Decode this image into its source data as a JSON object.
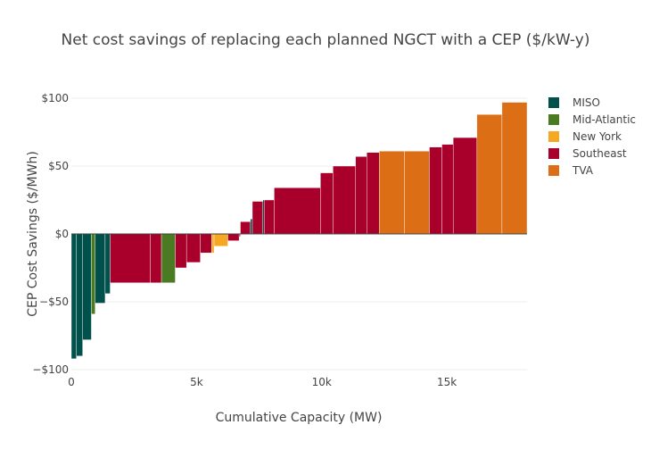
{
  "chart_data": {
    "type": "bar",
    "title": "Net cost savings of replacing each planned NGCT with a CEP ($/kW-y)",
    "xlabel": "Cumulative Capacity (MW)",
    "ylabel": "CEP Cost Savings ($/MWh)",
    "xlim": [
      0,
      18200
    ],
    "ylim": [
      -100,
      100
    ],
    "grid": true,
    "legend_position": "top-right",
    "x_ticks": [
      {
        "value": 0,
        "label": "0"
      },
      {
        "value": 5000,
        "label": "5k"
      },
      {
        "value": 10000,
        "label": "10k"
      },
      {
        "value": 15000,
        "label": "15k"
      }
    ],
    "y_ticks": [
      {
        "value": 100,
        "label": "$100"
      },
      {
        "value": 50,
        "label": "$50"
      },
      {
        "value": 0,
        "label": "$0"
      },
      {
        "value": -50,
        "label": "−$50"
      },
      {
        "value": -100,
        "label": "−$100"
      }
    ],
    "series": [
      {
        "name": "MISO",
        "color": "#00514b"
      },
      {
        "name": "Mid-Atlantic",
        "color": "#4a7b22"
      },
      {
        "name": "New York",
        "color": "#f7a823"
      },
      {
        "name": "Southeast",
        "color": "#a8002b"
      },
      {
        "name": "TVA",
        "color": "#dc6e15"
      }
    ],
    "bars": [
      {
        "series": "MISO",
        "x0": 0,
        "x1": 200,
        "y": -92
      },
      {
        "series": "MISO",
        "x0": 200,
        "x1": 450,
        "y": -90
      },
      {
        "series": "MISO",
        "x0": 450,
        "x1": 800,
        "y": -78
      },
      {
        "series": "Mid-Atlantic",
        "x0": 800,
        "x1": 950,
        "y": -59
      },
      {
        "series": "MISO",
        "x0": 950,
        "x1": 1350,
        "y": -51
      },
      {
        "series": "MISO",
        "x0": 1350,
        "x1": 1550,
        "y": -44
      },
      {
        "series": "Southeast",
        "x0": 1550,
        "x1": 3150,
        "y": -36
      },
      {
        "series": "Southeast",
        "x0": 3150,
        "x1": 3600,
        "y": -36
      },
      {
        "series": "Mid-Atlantic",
        "x0": 3600,
        "x1": 4150,
        "y": -36
      },
      {
        "series": "Southeast",
        "x0": 4150,
        "x1": 4600,
        "y": -25
      },
      {
        "series": "Southeast",
        "x0": 4600,
        "x1": 5150,
        "y": -21
      },
      {
        "series": "Southeast",
        "x0": 5150,
        "x1": 5600,
        "y": -14
      },
      {
        "series": "New York",
        "x0": 5600,
        "x1": 5700,
        "y": -14
      },
      {
        "series": "New York",
        "x0": 5700,
        "x1": 6250,
        "y": -9
      },
      {
        "series": "Southeast",
        "x0": 6250,
        "x1": 6700,
        "y": -5
      },
      {
        "series": "Southeast",
        "x0": 6700,
        "x1": 6750,
        "y": -2
      },
      {
        "series": "Southeast",
        "x0": 6750,
        "x1": 7150,
        "y": 9
      },
      {
        "series": "MISO",
        "x0": 7150,
        "x1": 7230,
        "y": 11
      },
      {
        "series": "Southeast",
        "x0": 7230,
        "x1": 7650,
        "y": 24
      },
      {
        "series": "MISO",
        "x0": 7650,
        "x1": 7700,
        "y": 25
      },
      {
        "series": "Southeast",
        "x0": 7700,
        "x1": 8100,
        "y": 25
      },
      {
        "series": "Southeast",
        "x0": 8100,
        "x1": 9950,
        "y": 34
      },
      {
        "series": "Southeast",
        "x0": 9950,
        "x1": 10450,
        "y": 45
      },
      {
        "series": "Southeast",
        "x0": 10450,
        "x1": 11350,
        "y": 50
      },
      {
        "series": "Southeast",
        "x0": 11350,
        "x1": 11800,
        "y": 57
      },
      {
        "series": "Southeast",
        "x0": 11800,
        "x1": 12300,
        "y": 60
      },
      {
        "series": "TVA",
        "x0": 12300,
        "x1": 13300,
        "y": 61
      },
      {
        "series": "TVA",
        "x0": 13300,
        "x1": 14300,
        "y": 61
      },
      {
        "series": "Southeast",
        "x0": 14300,
        "x1": 14800,
        "y": 64
      },
      {
        "series": "Southeast",
        "x0": 14800,
        "x1": 15250,
        "y": 66
      },
      {
        "series": "Southeast",
        "x0": 15250,
        "x1": 16200,
        "y": 71
      },
      {
        "series": "TVA",
        "x0": 16200,
        "x1": 17200,
        "y": 88
      },
      {
        "series": "TVA",
        "x0": 17200,
        "x1": 18200,
        "y": 97
      }
    ]
  }
}
